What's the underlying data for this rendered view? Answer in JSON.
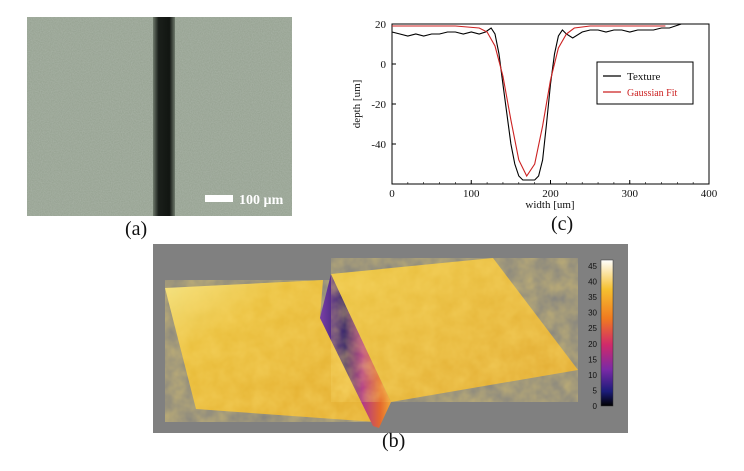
{
  "panel_a": {
    "scale_bar_label": "100 µm",
    "caption": "(a)"
  },
  "panel_b": {
    "caption": "(b)",
    "colorbar_ticks": [
      "0",
      "5",
      "10",
      "15",
      "20",
      "25",
      "30",
      "35",
      "40",
      "45"
    ],
    "colors": {
      "background": "#808080",
      "surface": "#e8b830",
      "deep": "#2a1a6a"
    }
  },
  "panel_c": {
    "caption": "(c)",
    "chart_data": {
      "type": "line",
      "xlabel": "width [um]",
      "ylabel": "depth [um]",
      "xlim": [
        0,
        400
      ],
      "ylim": [
        -60,
        20
      ],
      "xticks": [
        "0",
        "100",
        "200",
        "300",
        "400"
      ],
      "yticks": [
        "20",
        "0",
        "-20",
        "-40"
      ],
      "grid": false,
      "legend_position": "right",
      "series": [
        {
          "name": "Texture",
          "color": "#000000",
          "x": [
            0,
            10,
            20,
            30,
            40,
            50,
            60,
            70,
            80,
            90,
            100,
            110,
            118,
            125,
            130,
            135,
            140,
            145,
            150,
            155,
            160,
            165,
            170,
            175,
            180,
            185,
            190,
            195,
            200,
            205,
            210,
            215,
            220,
            228,
            240,
            250,
            260,
            270,
            280,
            290,
            300,
            310,
            320,
            330,
            340,
            350,
            365
          ],
          "y": [
            16,
            15,
            14,
            15,
            14,
            15,
            15,
            16,
            16,
            15,
            16,
            15,
            16,
            18,
            15,
            5,
            -10,
            -25,
            -40,
            -50,
            -56,
            -58,
            -58,
            -58,
            -58,
            -56,
            -48,
            -30,
            -10,
            5,
            14,
            17,
            15,
            13,
            16,
            17,
            17,
            16,
            17,
            17,
            16,
            17,
            17,
            17,
            18,
            18,
            20
          ]
        },
        {
          "name": "Gaussian Fit",
          "color": "#cc2222",
          "x": [
            0,
            40,
            80,
            110,
            120,
            130,
            140,
            150,
            160,
            170,
            180,
            190,
            200,
            210,
            220,
            230,
            250,
            300,
            345
          ],
          "y": [
            19,
            19,
            19,
            18,
            16,
            9,
            -6,
            -28,
            -48,
            -56,
            -50,
            -31,
            -8,
            8,
            15,
            18,
            19,
            19,
            19
          ]
        }
      ]
    }
  }
}
